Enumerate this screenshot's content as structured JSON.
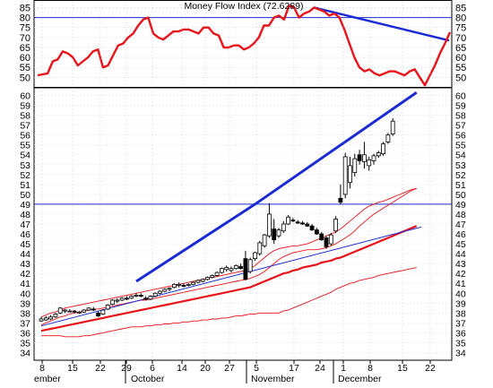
{
  "chart_data": [
    {
      "type": "line",
      "title": "Money Flow Index (72.6289)",
      "y_ticks": [
        50,
        55,
        60,
        65,
        70,
        75,
        80,
        85
      ],
      "ylim": [
        47,
        87
      ],
      "colors": {
        "mfi": "#e8141a",
        "reference": "#1a2bd6",
        "grid": "#bbbbbb"
      },
      "series": [
        {
          "values": [
            51,
            51.5,
            52,
            58,
            59,
            63,
            62,
            60,
            56,
            58,
            60,
            63,
            64,
            55,
            56,
            61,
            66,
            67,
            70,
            72,
            76,
            79,
            80,
            72,
            70,
            69,
            71,
            73,
            73,
            74,
            74,
            73,
            72,
            75,
            75,
            72,
            71,
            65,
            65,
            66,
            66,
            64,
            65,
            67,
            70,
            76,
            76,
            80,
            81,
            79,
            86,
            85,
            80,
            82,
            83,
            85,
            84,
            83,
            81,
            82,
            80,
            74,
            67,
            60,
            55,
            53,
            54,
            52,
            51,
            52,
            53,
            53,
            52,
            51,
            53,
            54,
            50,
            46,
            51,
            56,
            62,
            67,
            72.6
          ]
        }
      ],
      "reference_lines": [
        {
          "kind": "horizontal",
          "value": 80
        },
        {
          "kind": "trend",
          "from": {
            "i": 55,
            "y": 85
          },
          "to": {
            "i": 102,
            "y": 68.5
          }
        }
      ]
    },
    {
      "type": "candlestick",
      "y_ticks": [
        34,
        35,
        36,
        37,
        38,
        39,
        40,
        41,
        42,
        43,
        44,
        45,
        46,
        47,
        48,
        49,
        50,
        51,
        52,
        53,
        54,
        55,
        56,
        57,
        58,
        59,
        60
      ],
      "ylim": [
        33.5,
        60.5
      ],
      "x_tick_labels": [
        "8",
        "15",
        "22",
        "29",
        "6",
        "14",
        "20",
        "27",
        "5",
        "17",
        "24",
        "1",
        "8",
        "15",
        "22"
      ],
      "month_labels": [
        "ember",
        "October",
        "November",
        "December"
      ],
      "colors": {
        "up": "#ffffff",
        "down": "#000000",
        "ma_fast": "#e8141a",
        "ma_slow": "#e8141a",
        "envelope": "#e8141a",
        "trend": "#1a2bd6"
      },
      "candles": [
        {
          "o": 37.2,
          "h": 37.6,
          "l": 37.1,
          "c": 37.4
        },
        {
          "o": 37.3,
          "h": 37.7,
          "l": 37.2,
          "c": 37.5
        },
        {
          "o": 37.4,
          "h": 37.8,
          "l": 37.3,
          "c": 37.6
        },
        {
          "o": 37.6,
          "h": 38.0,
          "l": 37.5,
          "c": 37.9
        },
        {
          "o": 38.0,
          "h": 38.6,
          "l": 37.9,
          "c": 38.5
        },
        {
          "o": 38.2,
          "h": 38.4,
          "l": 38.0,
          "c": 38.3
        },
        {
          "o": 38.2,
          "h": 38.4,
          "l": 38.1,
          "c": 38.2
        },
        {
          "o": 38.2,
          "h": 38.3,
          "l": 38.0,
          "c": 38.1
        },
        {
          "o": 38.0,
          "h": 38.2,
          "l": 37.9,
          "c": 38.1
        },
        {
          "o": 38.1,
          "h": 38.4,
          "l": 38.0,
          "c": 38.3
        },
        {
          "o": 38.3,
          "h": 38.6,
          "l": 38.2,
          "c": 38.5
        },
        {
          "o": 38.4,
          "h": 38.6,
          "l": 38.2,
          "c": 38.3
        },
        {
          "o": 38.0,
          "h": 38.2,
          "l": 37.6,
          "c": 37.7
        },
        {
          "o": 37.9,
          "h": 38.4,
          "l": 37.8,
          "c": 38.3
        },
        {
          "o": 38.4,
          "h": 38.9,
          "l": 38.3,
          "c": 38.8
        },
        {
          "o": 38.9,
          "h": 39.4,
          "l": 38.8,
          "c": 39.3
        },
        {
          "o": 39.2,
          "h": 39.5,
          "l": 39.0,
          "c": 39.3
        },
        {
          "o": 39.3,
          "h": 39.6,
          "l": 39.2,
          "c": 39.5
        },
        {
          "o": 39.5,
          "h": 39.7,
          "l": 39.3,
          "c": 39.4
        },
        {
          "o": 39.5,
          "h": 39.8,
          "l": 39.4,
          "c": 39.7
        },
        {
          "o": 39.7,
          "h": 40.0,
          "l": 39.6,
          "c": 39.8
        },
        {
          "o": 39.8,
          "h": 40.0,
          "l": 39.6,
          "c": 39.7
        },
        {
          "o": 39.5,
          "h": 39.7,
          "l": 39.3,
          "c": 39.4
        },
        {
          "o": 39.4,
          "h": 39.8,
          "l": 39.3,
          "c": 39.7
        },
        {
          "o": 39.7,
          "h": 40.1,
          "l": 39.6,
          "c": 40.0
        },
        {
          "o": 40.0,
          "h": 40.3,
          "l": 39.9,
          "c": 40.2
        },
        {
          "o": 40.2,
          "h": 40.5,
          "l": 40.1,
          "c": 40.4
        },
        {
          "o": 40.4,
          "h": 40.6,
          "l": 40.2,
          "c": 40.5
        },
        {
          "o": 40.6,
          "h": 41.0,
          "l": 40.5,
          "c": 40.9
        },
        {
          "o": 40.8,
          "h": 41.1,
          "l": 40.6,
          "c": 40.9
        },
        {
          "o": 40.8,
          "h": 41.0,
          "l": 40.6,
          "c": 40.7
        },
        {
          "o": 40.8,
          "h": 41.0,
          "l": 40.7,
          "c": 40.9
        },
        {
          "o": 40.9,
          "h": 41.2,
          "l": 40.8,
          "c": 41.1
        },
        {
          "o": 41.1,
          "h": 41.4,
          "l": 41.0,
          "c": 41.3
        },
        {
          "o": 41.2,
          "h": 41.5,
          "l": 41.1,
          "c": 41.4
        },
        {
          "o": 41.4,
          "h": 41.7,
          "l": 41.3,
          "c": 41.6
        },
        {
          "o": 41.6,
          "h": 41.9,
          "l": 41.5,
          "c": 41.8
        },
        {
          "o": 41.8,
          "h": 42.2,
          "l": 41.7,
          "c": 42.1
        },
        {
          "o": 42.1,
          "h": 42.6,
          "l": 42.0,
          "c": 42.5
        },
        {
          "o": 42.4,
          "h": 42.8,
          "l": 42.2,
          "c": 42.6
        },
        {
          "o": 42.3,
          "h": 42.7,
          "l": 42.1,
          "c": 42.5
        },
        {
          "o": 42.5,
          "h": 42.9,
          "l": 42.4,
          "c": 42.8
        },
        {
          "o": 42.7,
          "h": 43.0,
          "l": 42.4,
          "c": 42.5
        },
        {
          "o": 43.5,
          "h": 44.3,
          "l": 41.3,
          "c": 41.4
        },
        {
          "o": 42.2,
          "h": 43.6,
          "l": 42.0,
          "c": 43.4
        },
        {
          "o": 43.5,
          "h": 44.2,
          "l": 43.3,
          "c": 44.1
        },
        {
          "o": 44.0,
          "h": 45.3,
          "l": 43.8,
          "c": 45.1
        },
        {
          "o": 44.8,
          "h": 46.0,
          "l": 44.6,
          "c": 45.9
        },
        {
          "o": 45.8,
          "h": 49.1,
          "l": 45.6,
          "c": 48.0
        },
        {
          "o": 46.5,
          "h": 47.5,
          "l": 45.0,
          "c": 45.4
        },
        {
          "o": 45.8,
          "h": 46.6,
          "l": 45.6,
          "c": 46.4
        },
        {
          "o": 46.3,
          "h": 47.3,
          "l": 46.1,
          "c": 47.0
        },
        {
          "o": 47.0,
          "h": 47.9,
          "l": 46.9,
          "c": 47.7
        },
        {
          "o": 47.4,
          "h": 47.6,
          "l": 47.2,
          "c": 47.3
        },
        {
          "o": 47.2,
          "h": 47.4,
          "l": 47.0,
          "c": 47.1
        },
        {
          "o": 47.1,
          "h": 47.3,
          "l": 46.9,
          "c": 47.0
        },
        {
          "o": 47.0,
          "h": 47.2,
          "l": 46.7,
          "c": 46.8
        },
        {
          "o": 46.8,
          "h": 47.0,
          "l": 46.3,
          "c": 46.4
        },
        {
          "o": 46.4,
          "h": 46.6,
          "l": 45.9,
          "c": 46.0
        },
        {
          "o": 46.0,
          "h": 46.2,
          "l": 45.3,
          "c": 45.4
        },
        {
          "o": 45.6,
          "h": 45.8,
          "l": 44.5,
          "c": 44.7
        },
        {
          "o": 45.0,
          "h": 46.1,
          "l": 44.8,
          "c": 45.9
        },
        {
          "o": 46.3,
          "h": 47.8,
          "l": 46.1,
          "c": 47.5
        },
        {
          "o": 49.6,
          "h": 51.0,
          "l": 49.0,
          "c": 49.2
        },
        {
          "o": 50.0,
          "h": 54.2,
          "l": 49.6,
          "c": 53.8
        },
        {
          "o": 51.2,
          "h": 53.8,
          "l": 50.6,
          "c": 52.9
        },
        {
          "o": 52.2,
          "h": 54.1,
          "l": 51.8,
          "c": 53.6
        },
        {
          "o": 54.0,
          "h": 54.5,
          "l": 53.0,
          "c": 53.4
        },
        {
          "o": 53.3,
          "h": 55.3,
          "l": 52.6,
          "c": 54.0
        },
        {
          "o": 52.9,
          "h": 53.8,
          "l": 52.4,
          "c": 53.5
        },
        {
          "o": 53.4,
          "h": 54.1,
          "l": 53.0,
          "c": 53.9
        },
        {
          "o": 53.9,
          "h": 54.4,
          "l": 53.7,
          "c": 54.2
        },
        {
          "o": 54.1,
          "h": 55.3,
          "l": 53.9,
          "c": 55.1
        },
        {
          "o": 55.3,
          "h": 56.2,
          "l": 55.1,
          "c": 56.0
        },
        {
          "o": 56.1,
          "h": 57.7,
          "l": 55.9,
          "c": 57.4
        }
      ],
      "ma_fast": [
        36.8,
        37.0,
        37.2,
        37.4,
        37.6,
        37.7,
        37.9,
        38.0,
        38.1,
        38.2,
        38.3,
        38.4,
        38.4,
        38.5,
        38.6,
        38.7,
        38.8,
        38.9,
        39.0,
        39.1,
        39.2,
        39.3,
        39.3,
        39.4,
        39.5,
        39.6,
        39.7,
        39.8,
        39.9,
        40.0,
        40.1,
        40.2,
        40.3,
        40.4,
        40.5,
        40.6,
        40.7,
        40.8,
        40.9,
        41.0,
        41.1,
        41.2,
        41.3,
        41.4,
        41.5,
        41.7,
        41.9,
        42.2,
        42.6,
        43.0,
        43.4,
        43.7,
        43.9,
        44.1,
        44.2,
        44.3,
        44.4,
        44.4,
        44.4,
        44.5,
        44.6,
        44.8,
        45.0,
        45.3,
        45.6,
        45.9,
        46.3,
        46.8,
        47.2,
        47.6,
        48.0,
        48.3,
        48.6,
        48.9,
        49.2,
        49.5,
        49.8,
        50.1,
        50.4,
        50.6
      ],
      "ma_slow": [
        36.2,
        36.3,
        36.4,
        36.5,
        36.6,
        36.7,
        36.8,
        36.9,
        37.0,
        37.1,
        37.2,
        37.3,
        37.4,
        37.5,
        37.6,
        37.7,
        37.8,
        37.9,
        38.0,
        38.1,
        38.2,
        38.3,
        38.4,
        38.5,
        38.6,
        38.7,
        38.8,
        38.9,
        39.0,
        39.1,
        39.2,
        39.3,
        39.4,
        39.5,
        39.6,
        39.7,
        39.8,
        39.9,
        40.0,
        40.1,
        40.2,
        40.3,
        40.4,
        40.5,
        40.6,
        40.8,
        41.0,
        41.2,
        41.4,
        41.6,
        41.8,
        42.0,
        42.1,
        42.3,
        42.4,
        42.6,
        42.7,
        42.8,
        42.9,
        43.1,
        43.2,
        43.3,
        43.5,
        43.6,
        43.8,
        44.0,
        44.2,
        44.4,
        44.6,
        44.8,
        45.0,
        45.2,
        45.4,
        45.6,
        45.8,
        46.0,
        46.2,
        46.4,
        46.6,
        46.8
      ],
      "envelope_upper": [
        37.6,
        37.8,
        38.0,
        38.1,
        38.3,
        38.5,
        38.6,
        38.7,
        38.8,
        38.9,
        39.0,
        39.1,
        39.2,
        39.3,
        39.4,
        39.5,
        39.6,
        39.7,
        39.8,
        39.9,
        40.0,
        40.1,
        40.2,
        40.3,
        40.4,
        40.5,
        40.6,
        40.7,
        40.8,
        40.9,
        41.0,
        41.1,
        41.2,
        41.3,
        41.4,
        41.5,
        41.6,
        41.7,
        41.8,
        41.9,
        42.0,
        42.1,
        42.2,
        42.3,
        42.5,
        42.8,
        43.2,
        43.6,
        44.0,
        44.3,
        44.5,
        44.6,
        44.7,
        44.8,
        44.8,
        44.9,
        45.0,
        45.2,
        45.4,
        45.6,
        45.8,
        46.0,
        46.2,
        46.5,
        46.9,
        47.3,
        47.7,
        48.1,
        48.5,
        48.8,
        49.0,
        49.2,
        49.3,
        49.5,
        49.7,
        49.9,
        50.1,
        50.3,
        50.5,
        50.6
      ],
      "envelope_lower": [
        35.7,
        35.7,
        35.7,
        35.7,
        35.7,
        35.6,
        35.6,
        35.6,
        35.6,
        35.7,
        35.7,
        35.8,
        35.9,
        36.0,
        36.1,
        36.2,
        36.3,
        36.4,
        36.5,
        36.6,
        36.6,
        36.6,
        36.7,
        36.7,
        36.8,
        36.8,
        36.9,
        36.9,
        37.0,
        37.0,
        37.1,
        37.1,
        37.2,
        37.2,
        37.3,
        37.3,
        37.4,
        37.4,
        37.5,
        37.5,
        37.6,
        37.7,
        37.7,
        37.8,
        37.9,
        37.9,
        38.0,
        38.0,
        38.0,
        38.0,
        38.0,
        38.2,
        38.3,
        38.5,
        38.7,
        38.9,
        39.1,
        39.3,
        39.5,
        39.7,
        39.9,
        40.1,
        40.4,
        40.6,
        40.8,
        41.0,
        41.1,
        41.3,
        41.4,
        41.5,
        41.6,
        41.8,
        41.9,
        42.0,
        42.1,
        42.2,
        42.3,
        42.4,
        42.5,
        42.6
      ],
      "horizontal_lines": [
        49
      ],
      "trend_lines": [
        {
          "width": 3,
          "from": {
            "i": 20,
            "y": 41.2
          },
          "to": {
            "i": 45,
            "y": 49.0
          }
        },
        {
          "width": 3,
          "from": {
            "i": 45,
            "y": 49.0
          },
          "to": {
            "i": 79,
            "y": 60.3
          }
        },
        {
          "width": 1,
          "from": {
            "i": 0,
            "y": 36.7
          },
          "to": {
            "i": 80,
            "y": 46.7
          }
        }
      ]
    }
  ]
}
